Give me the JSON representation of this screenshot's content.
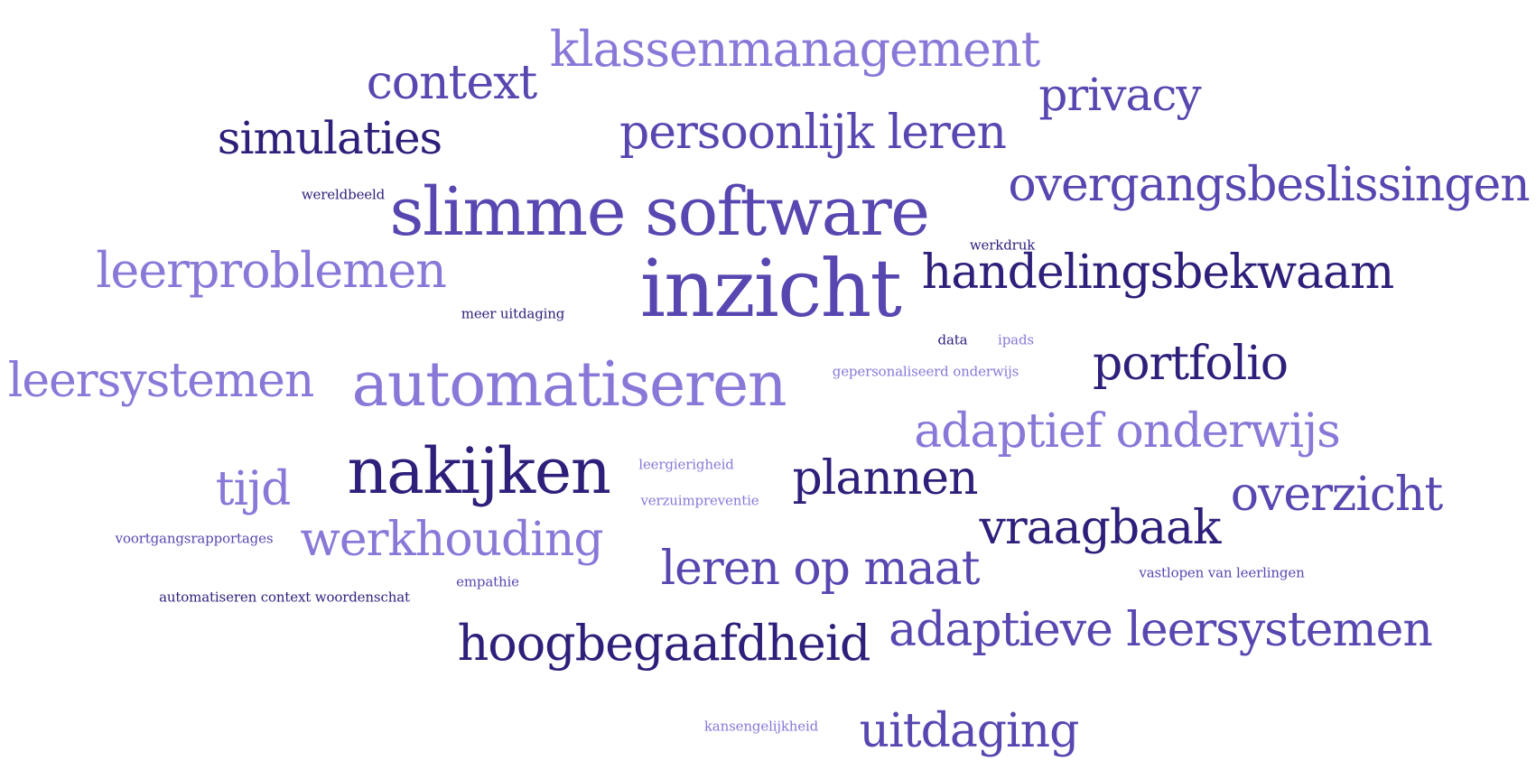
{
  "colors": {
    "background": "#ffffff",
    "light": "#8a78d8",
    "medium": "#5847b0",
    "dark": "#2d1f7a"
  },
  "words": [
    {
      "id": "klassenmanagement",
      "text": "klassenmanagement",
      "tone": "light"
    },
    {
      "id": "context",
      "text": "context",
      "tone": "medium"
    },
    {
      "id": "privacy",
      "text": "privacy",
      "tone": "medium"
    },
    {
      "id": "simulaties",
      "text": "simulaties",
      "tone": "dark"
    },
    {
      "id": "persoonlijk-leren",
      "text": "persoonlijk leren",
      "tone": "medium"
    },
    {
      "id": "wereldbeeld",
      "text": "wereldbeeld",
      "tone": "dark"
    },
    {
      "id": "slimme-software",
      "text": "slimme software",
      "tone": "medium"
    },
    {
      "id": "overgangsbeslissingen",
      "text": "overgangsbeslissingen",
      "tone": "medium"
    },
    {
      "id": "werkdruk",
      "text": "werkdruk",
      "tone": "dark"
    },
    {
      "id": "leerproblemen",
      "text": "leerproblemen",
      "tone": "light"
    },
    {
      "id": "meer-uitdaging",
      "text": "meer uitdaging",
      "tone": "dark"
    },
    {
      "id": "inzicht",
      "text": "inzicht",
      "tone": "medium"
    },
    {
      "id": "handelingsbekwaam",
      "text": "handelingsbekwaam",
      "tone": "dark"
    },
    {
      "id": "data",
      "text": "data",
      "tone": "dark"
    },
    {
      "id": "ipads",
      "text": "ipads",
      "tone": "light"
    },
    {
      "id": "leersystemen",
      "text": "leersystemen",
      "tone": "light"
    },
    {
      "id": "automatiseren",
      "text": "automatiseren",
      "tone": "light"
    },
    {
      "id": "gepersonaliseerd-onderwijs",
      "text": "gepersonaliseerd onderwijs",
      "tone": "light"
    },
    {
      "id": "portfolio",
      "text": "portfolio",
      "tone": "dark"
    },
    {
      "id": "adaptief-onderwijs",
      "text": "adaptief onderwijs",
      "tone": "light"
    },
    {
      "id": "tijd",
      "text": "tijd",
      "tone": "light"
    },
    {
      "id": "nakijken",
      "text": "nakijken",
      "tone": "dark"
    },
    {
      "id": "leergierigheid",
      "text": "leergierigheid",
      "tone": "light"
    },
    {
      "id": "plannen",
      "text": "plannen",
      "tone": "dark"
    },
    {
      "id": "overzicht",
      "text": "overzicht",
      "tone": "medium"
    },
    {
      "id": "verzuimpreventie",
      "text": "verzuimpreventie",
      "tone": "light"
    },
    {
      "id": "voortgangsrapportages",
      "text": "voortgangsrapportages",
      "tone": "medium"
    },
    {
      "id": "werkhouding",
      "text": "werkhouding",
      "tone": "light"
    },
    {
      "id": "vraagbaak",
      "text": "vraagbaak",
      "tone": "dark"
    },
    {
      "id": "leren-op-maat",
      "text": "leren op maat",
      "tone": "medium"
    },
    {
      "id": "vastlopen-van-leerlingen",
      "text": "vastlopen van leerlingen",
      "tone": "medium"
    },
    {
      "id": "empathie",
      "text": "empathie",
      "tone": "medium"
    },
    {
      "id": "automatiseren-context-woordenschat",
      "text": "automatiseren context woordenschat",
      "tone": "dark"
    },
    {
      "id": "hoogbegaafdheid",
      "text": "hoogbegaafdheid",
      "tone": "dark"
    },
    {
      "id": "adaptieve-leersystemen",
      "text": "adaptieve leersystemen",
      "tone": "medium"
    },
    {
      "id": "kansengelijkheid",
      "text": "kansengelijkheid",
      "tone": "light"
    },
    {
      "id": "uitdaging",
      "text": "uitdaging",
      "tone": "medium"
    }
  ]
}
